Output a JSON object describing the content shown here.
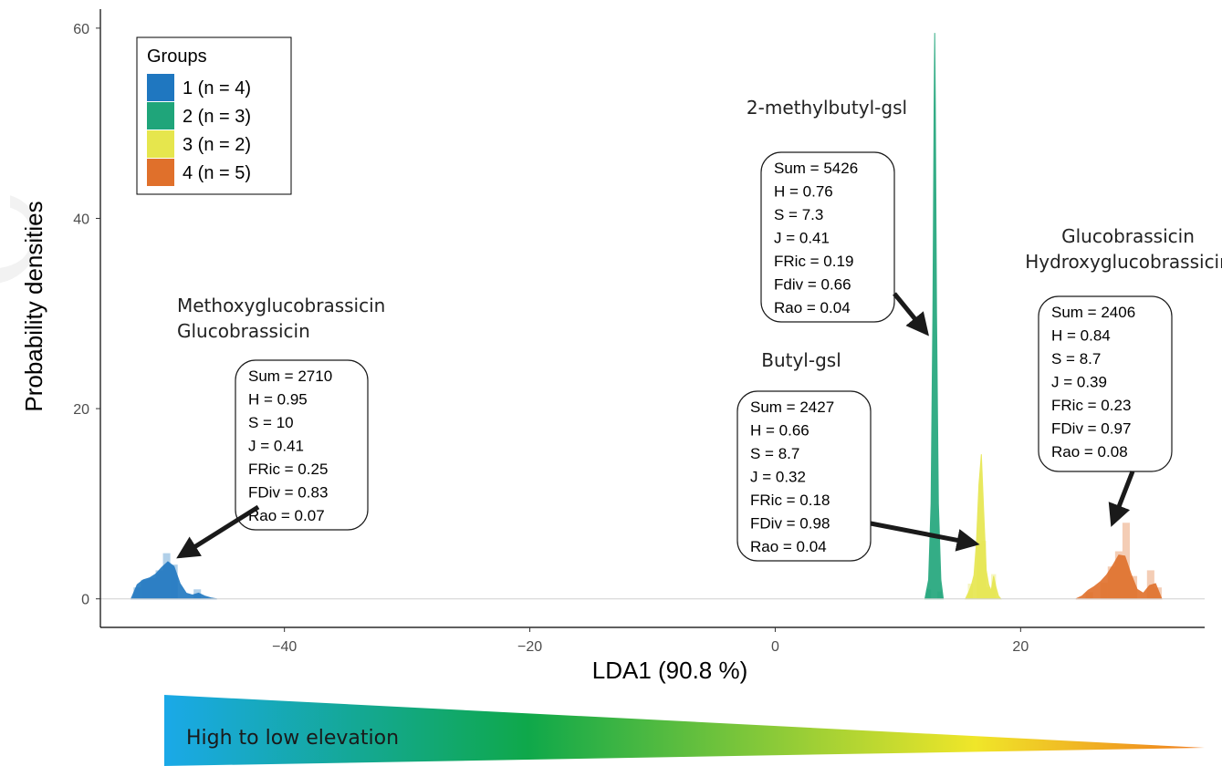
{
  "chart_data": {
    "type": "area",
    "title": "",
    "xlabel": "LDA1 (90.8 %)",
    "ylabel": "Probability densities",
    "xlim": [
      -55,
      35
    ],
    "ylim": [
      -3,
      62
    ],
    "x_ticks": [
      -40,
      -20,
      0,
      20
    ],
    "x_tick_labels": [
      "−40",
      "−20",
      "0",
      "20"
    ],
    "y_ticks": [
      0,
      20,
      40,
      60
    ],
    "y_tick_labels": [
      "0",
      "20",
      "40",
      "60"
    ],
    "grid": false,
    "legend": {
      "title": "Groups",
      "placement": "top-left",
      "entries": [
        {
          "label": "1 (n = 4)",
          "color": "#1f77c0"
        },
        {
          "label": "2 (n = 3)",
          "color": "#1fa57a"
        },
        {
          "label": "3 (n = 2)",
          "color": "#e6e64d"
        },
        {
          "label": "4 (n = 5)",
          "color": "#e0702b"
        }
      ]
    },
    "series": [
      {
        "name": "1 (n = 4)",
        "color": "#1f77c0",
        "x": [
          -52.5,
          -52,
          -51.5,
          -51,
          -50.5,
          -50,
          -49.5,
          -49,
          -48.5,
          -48,
          -47.5,
          -47,
          -46.5,
          -46,
          -45.5
        ],
        "y": [
          0,
          1.5,
          2.0,
          2.2,
          2.6,
          3.3,
          3.9,
          3.4,
          1.6,
          0.6,
          0.4,
          0.6,
          0.3,
          0.1,
          0
        ],
        "hist": [
          {
            "x0": -52.3,
            "x1": -51.7,
            "h": 1.2
          },
          {
            "x0": -51.7,
            "x1": -51.1,
            "h": 2.0
          },
          {
            "x0": -51.1,
            "x1": -50.5,
            "h": 2.2
          },
          {
            "x0": -50.5,
            "x1": -49.9,
            "h": 3.0
          },
          {
            "x0": -49.9,
            "x1": -49.3,
            "h": 4.8
          },
          {
            "x0": -49.3,
            "x1": -48.7,
            "h": 3.6
          },
          {
            "x0": -47.4,
            "x1": -46.8,
            "h": 1.0
          }
        ]
      },
      {
        "name": "2 (n = 3)",
        "color": "#1fa57a",
        "x": [
          12.2,
          12.5,
          12.7,
          12.85,
          12.95,
          13.0,
          13.05,
          13.15,
          13.3,
          13.5,
          13.7
        ],
        "y": [
          0,
          2,
          10,
          30,
          52,
          59.5,
          52,
          30,
          10,
          2,
          0
        ],
        "hist": [
          {
            "x0": 12.3,
            "x1": 12.7,
            "h": 1.0
          },
          {
            "x0": 13.2,
            "x1": 13.6,
            "h": 0.8
          }
        ]
      },
      {
        "name": "3 (n = 2)",
        "color": "#e6e64d",
        "x": [
          15.5,
          15.8,
          16.0,
          16.2,
          16.4,
          16.6,
          16.8,
          17.0,
          17.2,
          17.4,
          17.6,
          17.8,
          18.0,
          18.2,
          18.4
        ],
        "y": [
          0,
          0.8,
          1.5,
          2.5,
          6,
          12,
          15.2,
          9,
          3,
          1.5,
          0.8,
          2.4,
          1.2,
          0.3,
          0
        ],
        "hist": [
          {
            "x0": 15.7,
            "x1": 16.1,
            "h": 1.6
          },
          {
            "x0": 16.4,
            "x1": 16.8,
            "h": 5.8
          },
          {
            "x0": 16.8,
            "x1": 17.2,
            "h": 6.1
          },
          {
            "x0": 17.2,
            "x1": 17.6,
            "h": 1.2
          },
          {
            "x0": 17.6,
            "x1": 18.0,
            "h": 2.6
          }
        ]
      },
      {
        "name": "4 (n = 5)",
        "color": "#e0702b",
        "x": [
          24.5,
          25,
          25.5,
          26,
          26.5,
          27,
          27.5,
          28,
          28.5,
          29,
          29.5,
          30,
          30.5,
          31,
          31.5
        ],
        "y": [
          0,
          0.3,
          0.9,
          1.3,
          1.8,
          2.5,
          3.5,
          4.6,
          4.5,
          2.6,
          1.0,
          0.6,
          1.4,
          1.6,
          0
        ],
        "hist": [
          {
            "x0": 25.3,
            "x1": 25.9,
            "h": 0.7
          },
          {
            "x0": 26.5,
            "x1": 27.1,
            "h": 1.7
          },
          {
            "x0": 27.1,
            "x1": 27.7,
            "h": 3.4
          },
          {
            "x0": 27.7,
            "x1": 28.3,
            "h": 5.0
          },
          {
            "x0": 28.3,
            "x1": 28.9,
            "h": 8.0
          },
          {
            "x0": 28.9,
            "x1": 29.5,
            "h": 2.4
          },
          {
            "x0": 30.3,
            "x1": 30.9,
            "h": 3.0
          },
          {
            "x0": 30.9,
            "x1": 31.5,
            "h": 1.2
          }
        ]
      }
    ],
    "annotations": [
      {
        "title_lines": [
          "Methoxyglucobrassicin",
          "Glucobrassicin"
        ],
        "stats": [
          "Sum = 2710",
          "H = 0.95",
          "S = 10",
          "J = 0.41",
          "FRic = 0.25",
          "FDiv = 0.83",
          "Rao = 0.07"
        ],
        "arrow_to": [
          -48.5,
          4.5
        ]
      },
      {
        "title_lines": [
          "2-methylbutyl-gsl"
        ],
        "stats": [
          "Sum = 5426",
          "H = 0.76",
          "S = 7.3",
          "J = 0.41",
          "FRic = 0.19",
          "Fdiv = 0.66",
          "Rao = 0.04"
        ],
        "arrow_to": [
          12.3,
          28
        ]
      },
      {
        "title_lines": [
          "Butyl-gsl"
        ],
        "stats": [
          "Sum = 2427",
          "H = 0.66",
          "S = 8.7",
          "J = 0.32",
          "FRic = 0.18",
          "FDiv = 0.98",
          "Rao = 0.04"
        ],
        "arrow_to": [
          16.3,
          5.8
        ]
      },
      {
        "title_lines": [
          "Glucobrassicin",
          "Hydroxyglucobrassicin"
        ],
        "stats": [
          "Sum = 2406",
          "H = 0.84",
          "S = 8.7",
          "J = 0.39",
          "FRic = 0.23",
          "FDiv = 0.97",
          "Rao = 0.08"
        ],
        "arrow_to": [
          27.5,
          8
        ]
      }
    ]
  },
  "gradient_bar": {
    "label": "High to low elevation",
    "colors": [
      "#1aa9e8",
      "#0fa84a",
      "#f0e629",
      "#f07c1e"
    ]
  }
}
